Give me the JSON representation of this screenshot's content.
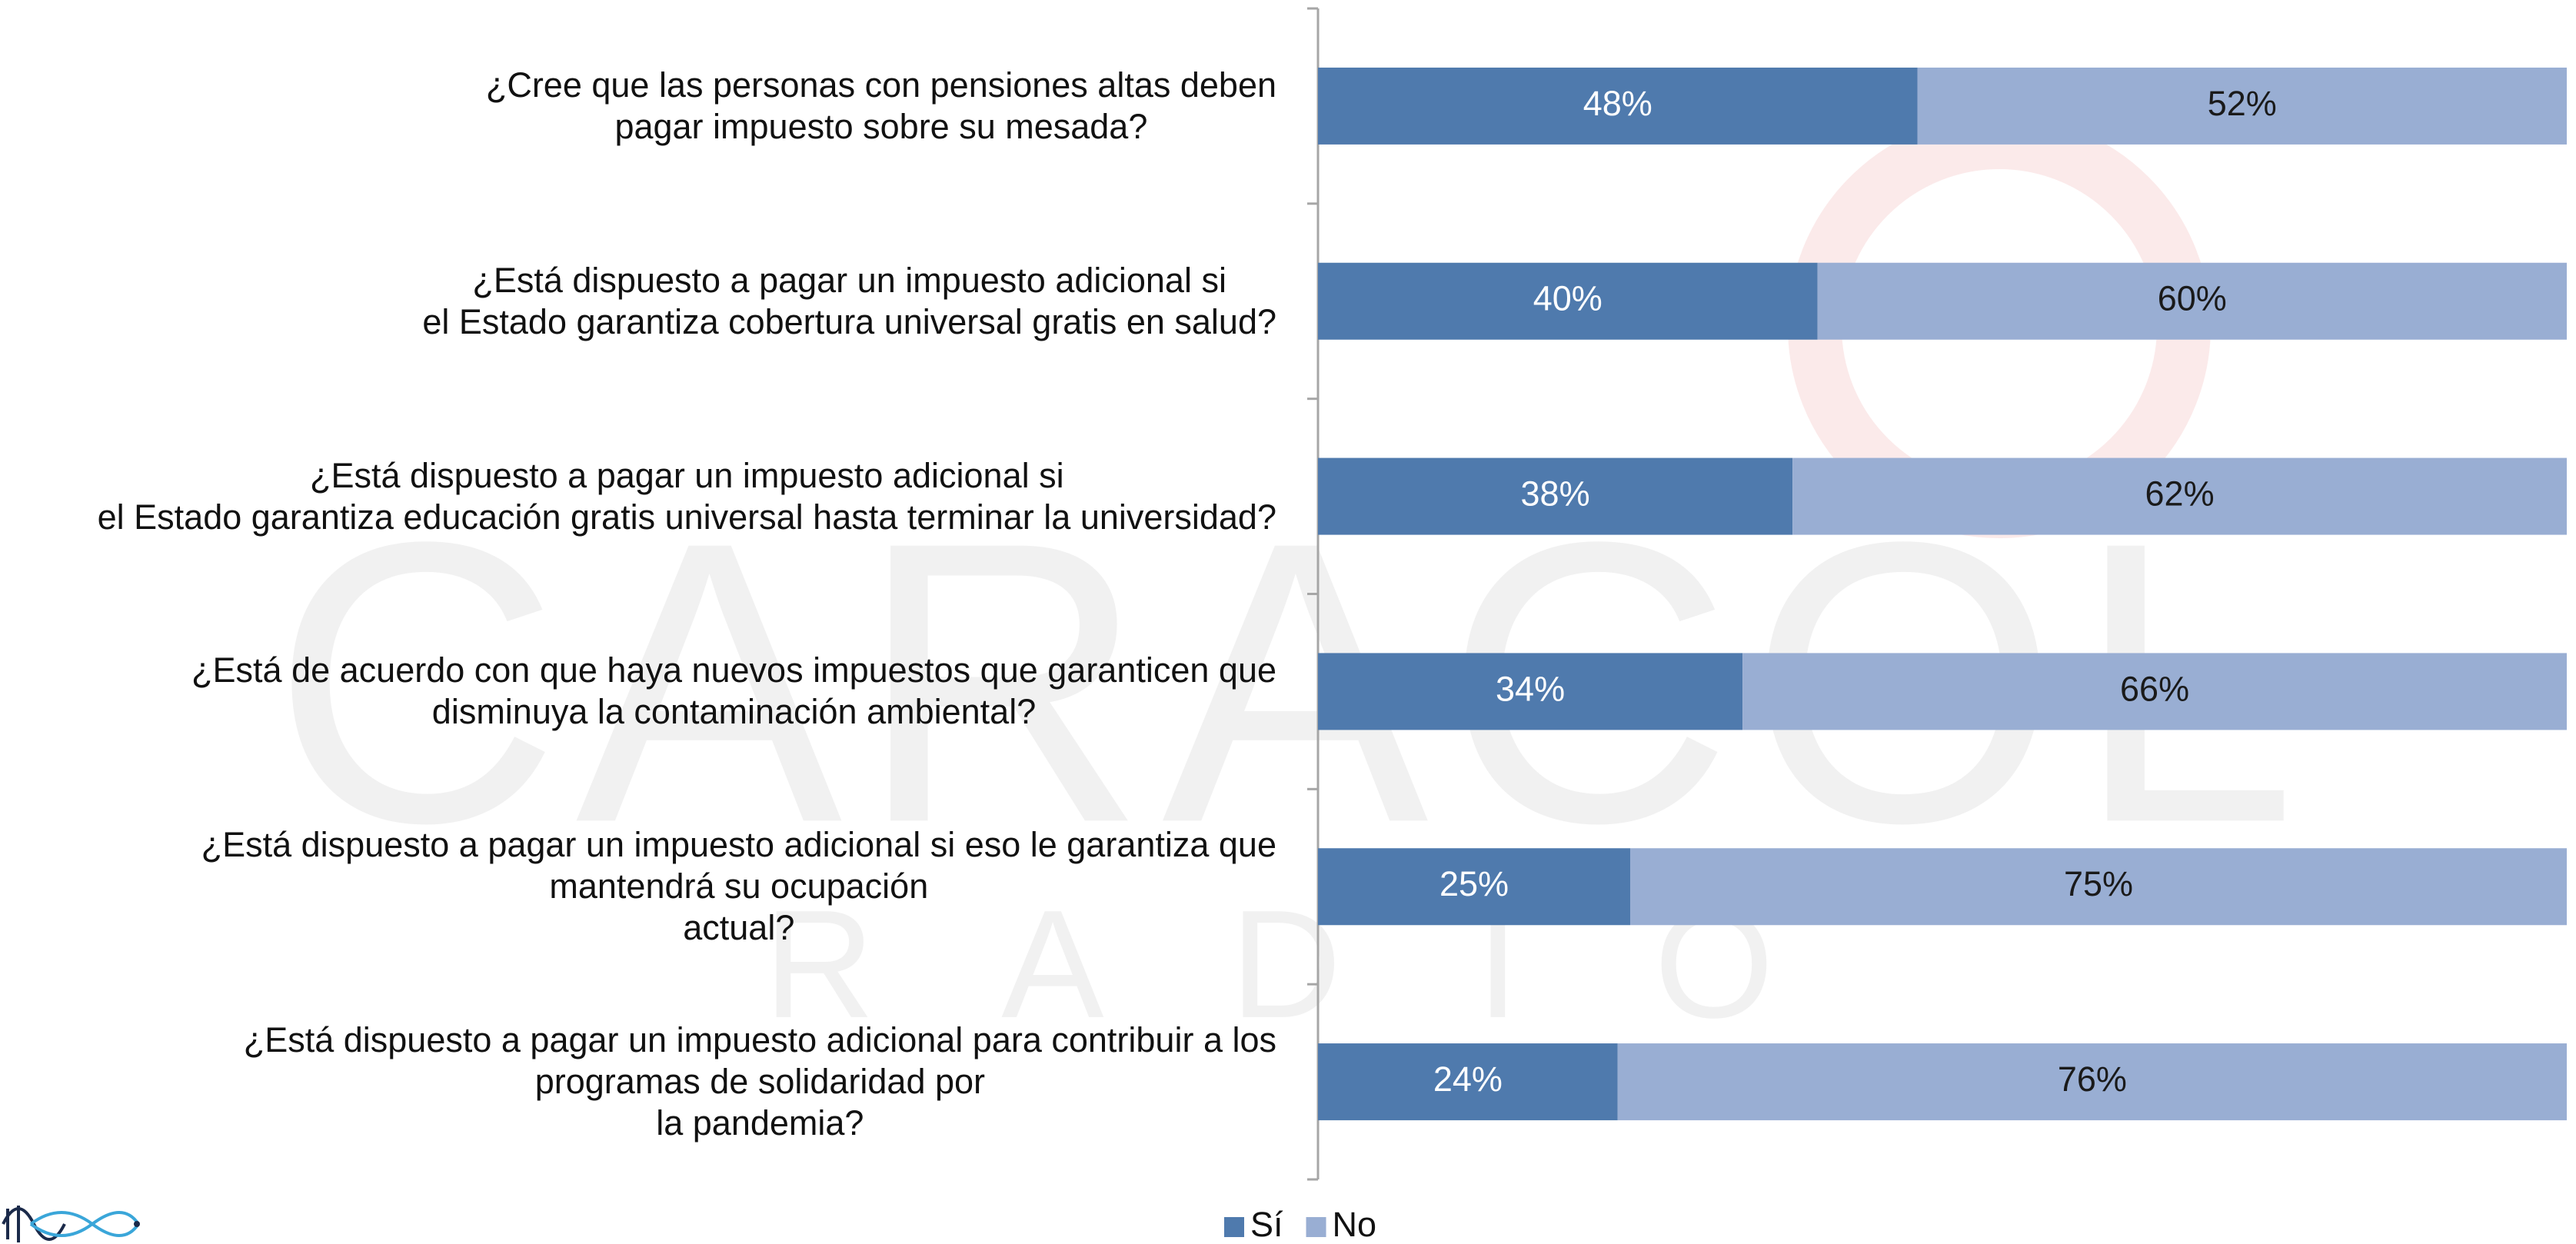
{
  "chart_data": {
    "type": "stacked_barh",
    "watermark": [
      "CARACOL",
      "R A D I O"
    ],
    "categories": [
      "¿Cree que las personas con pensiones altas deben\npagar impuesto sobre su mesada?",
      "¿Está dispuesto a pagar un impuesto adicional si\nel Estado garantiza cobertura universal gratis en salud?",
      "¿Está dispuesto a pagar un impuesto adicional si\nel Estado garantiza educación gratis universal hasta terminar la universidad?",
      "¿Está de acuerdo con que haya nuevos impuestos que garanticen que\ndisminuya la contaminación ambiental?",
      "¿Está dispuesto a pagar un impuesto adicional si eso le garantiza que\nmantendrá su ocupación\nactual?",
      "¿Está dispuesto a pagar un impuesto adicional para contribuir a los\nprogramas de solidaridad por\nla pandemia?"
    ],
    "series": [
      {
        "name": "Sí",
        "color": "#4f7aad",
        "label_color": "#ffffff",
        "values": [
          48,
          40,
          38,
          34,
          25,
          24
        ],
        "value_labels": [
          "48%",
          "40%",
          "38%",
          "34%",
          "25%",
          "24%"
        ]
      },
      {
        "name": "No",
        "color": "#99aed3",
        "label_color": "#1a1a1a",
        "values": [
          52,
          60,
          62,
          66,
          75,
          76
        ],
        "value_labels": [
          "52%",
          "60%",
          "62%",
          "66%",
          "75%",
          "76%"
        ]
      }
    ],
    "xlim": [
      0,
      100
    ],
    "legend": "bottom"
  }
}
